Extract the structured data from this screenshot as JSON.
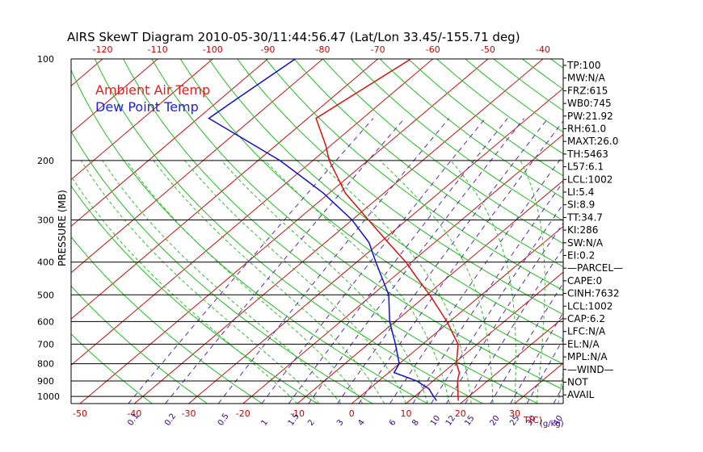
{
  "title": "AIRS SkewT Diagram 2010-05-30/11:44:56.47 (Lat/Lon 33.45/-155.71 deg)",
  "chart_data": {
    "type": "line",
    "ylabel": "PRESSURE (MB)",
    "xlabel": "T(C)",
    "mixing_ratio_unit": "(g/kg)",
    "y_scale": "log-pressure",
    "ylim": [
      1050,
      100
    ],
    "pressure_ticks": [
      100,
      200,
      300,
      400,
      500,
      600,
      700,
      800,
      900,
      1000
    ],
    "top_temp_ticks": [
      -120,
      -110,
      -100,
      -90,
      -80,
      -70,
      -60,
      -50,
      -40
    ],
    "bottom_temp_ticks": [
      -50,
      -40,
      -30,
      -20,
      -10,
      0,
      10,
      20,
      30
    ],
    "mixing_ratio_labels": [
      "0.1",
      "0.2",
      "0.5",
      "1",
      "1.5",
      "2",
      "3",
      "4",
      "6",
      "8",
      "10",
      "12",
      "15",
      "20",
      "25",
      "30",
      "40"
    ],
    "grid": true,
    "legend": [
      {
        "name": "Ambient Air Temp",
        "color": "#e02020"
      },
      {
        "name": "Dew Point Temp",
        "color": "#2020dd"
      }
    ],
    "series": [
      {
        "name": "Ambient Air Temp",
        "color": "#dd1010",
        "points": [
          {
            "p": 100,
            "t": -64
          },
          {
            "p": 150,
            "t": -68.5
          },
          {
            "p": 180,
            "t": -61
          },
          {
            "p": 200,
            "t": -57
          },
          {
            "p": 250,
            "t": -47
          },
          {
            "p": 300,
            "t": -37
          },
          {
            "p": 350,
            "t": -28.5
          },
          {
            "p": 400,
            "t": -21
          },
          {
            "p": 450,
            "t": -15
          },
          {
            "p": 500,
            "t": -9.5
          },
          {
            "p": 600,
            "t": -0.5
          },
          {
            "p": 700,
            "t": 6.5
          },
          {
            "p": 800,
            "t": 10.5
          },
          {
            "p": 850,
            "t": 13
          },
          {
            "p": 900,
            "t": 14.5
          },
          {
            "p": 1000,
            "t": 18
          },
          {
            "p": 1030,
            "t": 19
          }
        ]
      },
      {
        "name": "Dew Point Temp",
        "color": "#1010cc",
        "points": [
          {
            "p": 100,
            "t": -85
          },
          {
            "p": 130,
            "t": -87
          },
          {
            "p": 150,
            "t": -88
          },
          {
            "p": 200,
            "t": -66
          },
          {
            "p": 250,
            "t": -51
          },
          {
            "p": 300,
            "t": -40
          },
          {
            "p": 350,
            "t": -32
          },
          {
            "p": 400,
            "t": -26.5
          },
          {
            "p": 450,
            "t": -21.5
          },
          {
            "p": 500,
            "t": -17
          },
          {
            "p": 600,
            "t": -11
          },
          {
            "p": 700,
            "t": -5
          },
          {
            "p": 800,
            "t": 0
          },
          {
            "p": 850,
            "t": 1
          },
          {
            "p": 900,
            "t": 7
          },
          {
            "p": 950,
            "t": 11
          },
          {
            "p": 1000,
            "t": 13.5
          },
          {
            "p": 1030,
            "t": 15
          }
        ]
      }
    ]
  },
  "indices": [
    "TP:100",
    "MW:N/A",
    "FRZ:615",
    "WB0:745",
    "PW:21.92",
    "RH:61.0",
    "MAXT:26.0",
    "TH:5463",
    "L57:6.1",
    "LCL:1002",
    "LI:5.4",
    "SI:8.9",
    "TT:34.7",
    "KI:286",
    "SW:N/A",
    "EI:0.2",
    "—PARCEL—",
    "CAPE:0",
    "CINH:7632",
    "LCL:1002",
    "CAP:6.2",
    "LFC:N/A",
    "EL:N/A",
    "MPL:N/A",
    "—WIND—",
    "NOT",
    "AVAIL"
  ]
}
